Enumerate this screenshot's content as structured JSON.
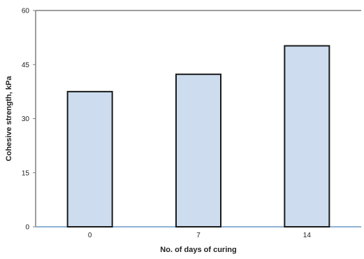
{
  "chart_data": {
    "type": "bar",
    "categories": [
      "0",
      "7",
      "14"
    ],
    "values": [
      37.5,
      42.3,
      50.2
    ],
    "xlabel": "No. of days of curing",
    "ylabel": "Cohesive strength, kPa",
    "ylim": [
      0,
      60
    ],
    "yticks": [
      "0",
      "15",
      "30",
      "45",
      "60"
    ],
    "grid": false,
    "legend": "none",
    "colors": {
      "bar_fill": "#cddcef",
      "bar_stroke": "#1a1a1a",
      "x_axis": "#8fb2d3",
      "frame": "#7f7f7f"
    }
  }
}
